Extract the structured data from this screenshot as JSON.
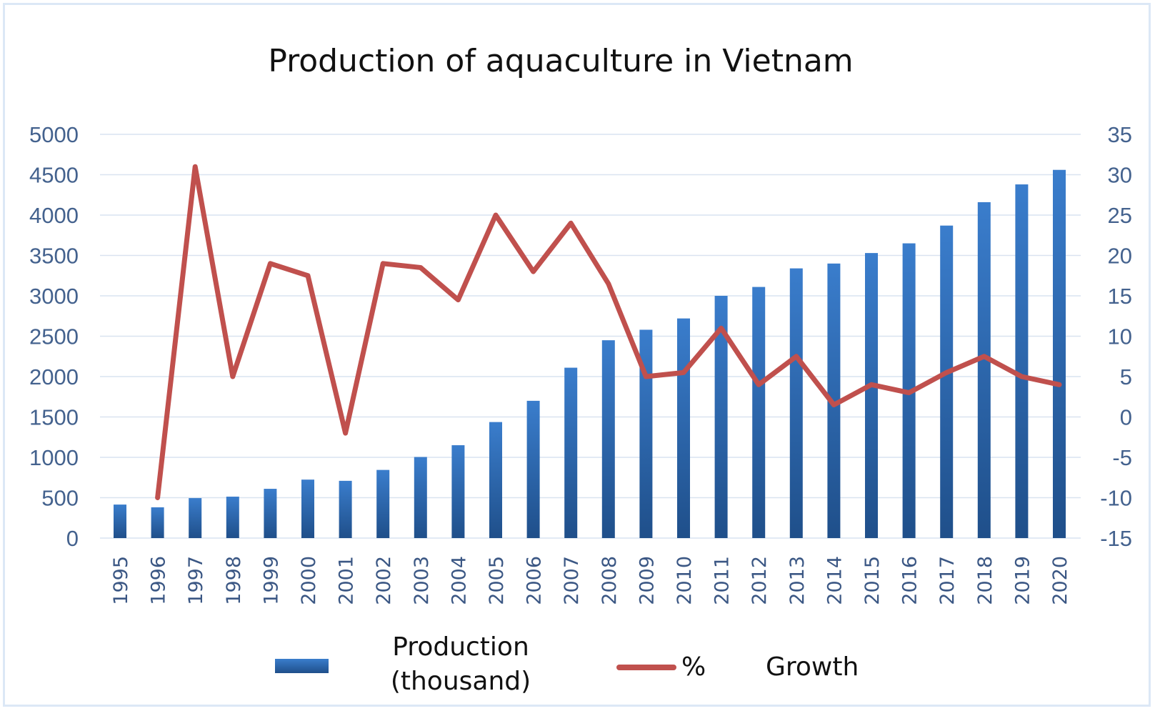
{
  "chart_data": {
    "type": "bar",
    "title": "Production of aquaculture in Vietnam",
    "categories": [
      "1995",
      "1996",
      "1997",
      "1998",
      "1999",
      "2000",
      "2001",
      "2002",
      "2003",
      "2004",
      "2005",
      "2006",
      "2007",
      "2008",
      "2009",
      "2010",
      "2011",
      "2012",
      "2013",
      "2014",
      "2015",
      "2016",
      "2017",
      "2018",
      "2019",
      "2020"
    ],
    "series": [
      {
        "name": "Production (thousand)",
        "type": "bar",
        "axis": "left",
        "color": "#2e6db4",
        "values": [
          415,
          381,
          495,
          513,
          610,
          724,
          709,
          844,
          1004,
          1150,
          1437,
          1700,
          2110,
          2450,
          2580,
          2720,
          3000,
          3110,
          3340,
          3400,
          3530,
          3650,
          3870,
          4160,
          4380,
          4560
        ]
      },
      {
        "name": "Growth",
        "type": "line",
        "axis": "right",
        "color": "#c0504d",
        "values": [
          null,
          -10,
          31,
          5,
          19,
          17.5,
          -2,
          19,
          18.5,
          14.5,
          25,
          18,
          24,
          16.5,
          5,
          5.5,
          11,
          4,
          7.5,
          1.5,
          4,
          3,
          5.5,
          7.5,
          5,
          4
        ]
      }
    ],
    "yaxis_left": {
      "ticks": [
        "0",
        "500",
        "1000",
        "1500",
        "2000",
        "2500",
        "3000",
        "3500",
        "4000",
        "4500",
        "5000"
      ],
      "min": 0,
      "max": 5000
    },
    "yaxis_right": {
      "ticks": [
        "-15",
        "-10",
        "-5",
        "0",
        "5",
        "10",
        "15",
        "20",
        "25",
        "30",
        "35"
      ],
      "min": -15,
      "max": 35
    },
    "grid": true,
    "legend": {
      "position": "bottom",
      "bar_label_line1": "Production",
      "bar_label_line2": "(thousand)",
      "line_label_prefix": "%",
      "line_label": "Growth"
    }
  }
}
